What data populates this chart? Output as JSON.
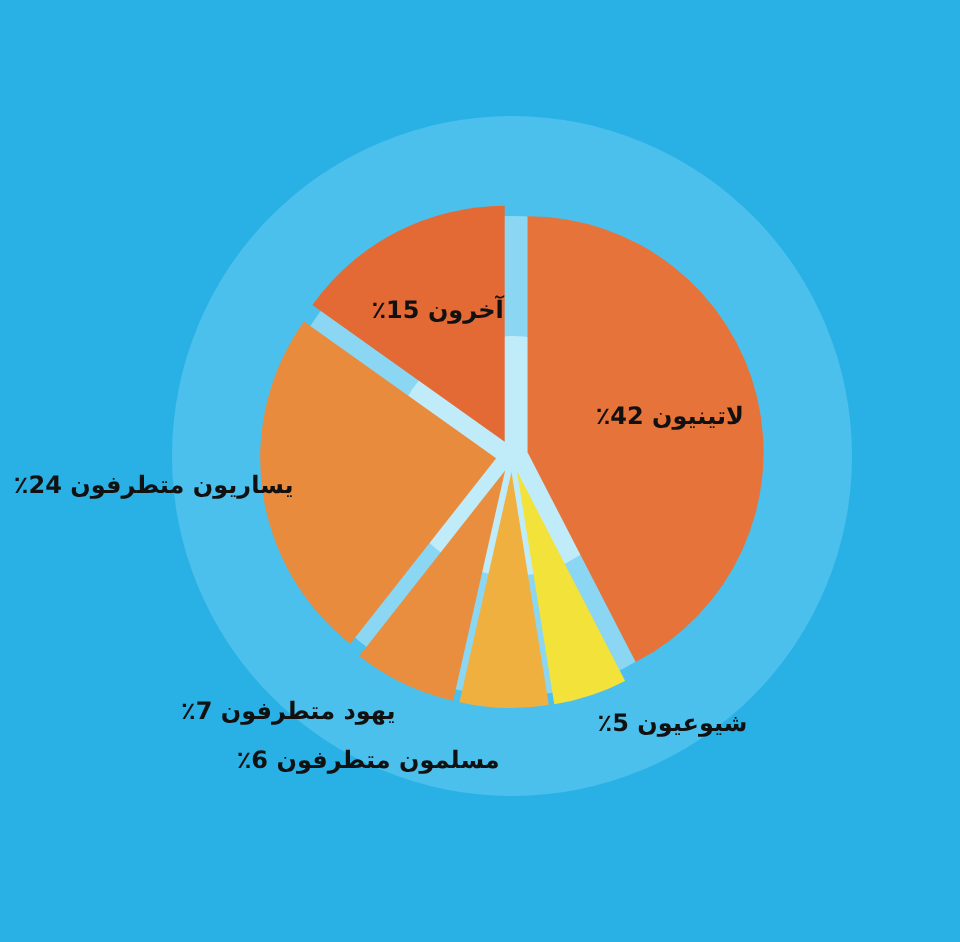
{
  "chart_data": {
    "type": "pie",
    "categories": [
      "لاتينيون",
      "شيوعيون",
      "مسلمون متطرفون",
      "يهود متطرفون",
      "يساريون متطرفون",
      "آخرون"
    ],
    "values": [
      42,
      5,
      6,
      7,
      24,
      15
    ],
    "value_labels": [
      "٪42",
      "٪5",
      "٪6",
      "٪7",
      "٪24",
      "٪15"
    ],
    "colors": [
      "#e5733a",
      "#f2e23a",
      "#f0b040",
      "#e98e3e",
      "#e88b3c",
      "#e36a35"
    ],
    "legend": false
  }
}
